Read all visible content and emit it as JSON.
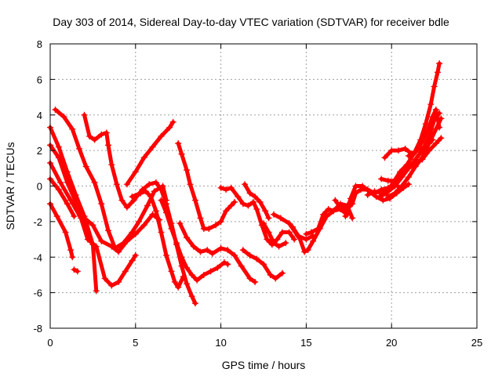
{
  "chart_data": {
    "type": "scatter",
    "title": "Day 303 of 2014, Sidereal Day-to-day VTEC variation (SDTVAR) for receiver bdle",
    "xlabel": "GPS time / hours",
    "ylabel": "SDTVAR / TECUs",
    "xlim": [
      0,
      25
    ],
    "ylim": [
      -8,
      8
    ],
    "xticks": [
      "0",
      "5",
      "10",
      "15",
      "20",
      "25"
    ],
    "yticks": [
      "8",
      "6",
      "4",
      "2",
      "0",
      "-2",
      "-4",
      "-6",
      "-8"
    ],
    "grid": true,
    "marker": "plus",
    "color": "#ff0000",
    "series": [
      {
        "points": [
          [
            0.0,
            3.3
          ],
          [
            0.5,
            2.2
          ],
          [
            1.0,
            0.8
          ],
          [
            1.5,
            -0.5
          ],
          [
            2.0,
            -1.7
          ],
          [
            2.5,
            -3.3
          ],
          [
            2.7,
            -5.9
          ]
        ]
      },
      {
        "points": [
          [
            0.0,
            1.3
          ],
          [
            0.6,
            0.2
          ],
          [
            1.2,
            -0.8
          ],
          [
            1.8,
            -1.8
          ],
          [
            2.2,
            -3.0
          ],
          [
            2.7,
            -3.4
          ],
          [
            3.2,
            -5.2
          ],
          [
            3.6,
            -5.6
          ],
          [
            4.0,
            -5.4
          ],
          [
            4.4,
            -4.8
          ],
          [
            4.8,
            -4.2
          ],
          [
            5.0,
            -3.9
          ]
        ]
      },
      {
        "points": [
          [
            0.0,
            -1.0
          ],
          [
            0.4,
            -1.7
          ],
          [
            0.9,
            -2.6
          ],
          [
            1.2,
            -3.6
          ],
          [
            1.3,
            -4.0
          ]
        ]
      },
      {
        "points": [
          [
            1.4,
            -4.7
          ],
          [
            1.6,
            -4.8
          ]
        ]
      },
      {
        "points": [
          [
            0.3,
            4.3
          ],
          [
            0.8,
            3.9
          ],
          [
            1.3,
            3.2
          ],
          [
            1.7,
            2.1
          ],
          [
            2.1,
            1.1
          ],
          [
            2.6,
            0.2
          ],
          [
            3.0,
            -1.0
          ],
          [
            3.4,
            -2.5
          ],
          [
            3.8,
            -3.5
          ],
          [
            4.3,
            -3.2
          ],
          [
            4.8,
            -2.6
          ],
          [
            5.2,
            -2.0
          ],
          [
            5.7,
            -1.1
          ],
          [
            6.1,
            -0.3
          ],
          [
            6.6,
            0.0
          ],
          [
            6.8,
            -0.8
          ]
        ]
      },
      {
        "points": [
          [
            0.0,
            2.3
          ],
          [
            0.5,
            1.6
          ],
          [
            1.0,
            0.2
          ],
          [
            1.5,
            -0.9
          ],
          [
            2.0,
            -1.8
          ],
          [
            2.5,
            -2.2
          ],
          [
            3.0,
            -3.1
          ],
          [
            3.6,
            -3.4
          ],
          [
            4.0,
            -3.7
          ],
          [
            4.5,
            -3.1
          ],
          [
            5.0,
            -2.7
          ],
          [
            5.5,
            -2.2
          ],
          [
            6.0,
            -1.6
          ],
          [
            6.4,
            -1.9
          ]
        ]
      },
      {
        "points": [
          [
            0.0,
            0.4
          ],
          [
            0.5,
            -0.2
          ],
          [
            1.0,
            -1.0
          ],
          [
            1.4,
            -1.7
          ]
        ]
      },
      {
        "points": [
          [
            2.0,
            4.0
          ],
          [
            2.3,
            2.8
          ],
          [
            2.6,
            2.6
          ],
          [
            3.0,
            2.9
          ],
          [
            3.3,
            3.0
          ],
          [
            3.4,
            2.3
          ],
          [
            3.6,
            1.2
          ],
          [
            3.9,
            0.1
          ],
          [
            4.2,
            -0.8
          ],
          [
            4.5,
            -1.2
          ],
          [
            4.9,
            -0.8
          ],
          [
            5.4,
            -0.2
          ],
          [
            5.8,
            0.1
          ],
          [
            6.2,
            0.2
          ],
          [
            6.5,
            -0.2
          ],
          [
            6.8,
            -1.0
          ],
          [
            7.1,
            -2.1
          ],
          [
            7.4,
            -3.3
          ],
          [
            7.7,
            -4.5
          ],
          [
            8.0,
            -5.5
          ],
          [
            8.3,
            -6.2
          ],
          [
            8.5,
            -6.6
          ]
        ]
      },
      {
        "points": [
          [
            4.5,
            0.1
          ],
          [
            5.0,
            0.8
          ],
          [
            5.5,
            1.6
          ],
          [
            6.0,
            2.2
          ],
          [
            6.5,
            2.8
          ],
          [
            7.0,
            3.3
          ],
          [
            7.2,
            3.6
          ]
        ]
      },
      {
        "points": [
          [
            4.8,
            -0.6
          ],
          [
            5.3,
            -0.4
          ],
          [
            5.6,
            -0.3
          ],
          [
            5.9,
            -0.6
          ],
          [
            6.2,
            -1.4
          ],
          [
            6.5,
            -2.6
          ],
          [
            6.8,
            -3.9
          ],
          [
            7.1,
            -4.8
          ],
          [
            7.3,
            -5.4
          ],
          [
            7.5,
            -5.7
          ],
          [
            7.8,
            -5.1
          ]
        ]
      },
      {
        "points": [
          [
            6.5,
            -0.8
          ],
          [
            6.8,
            -1.5
          ],
          [
            7.1,
            -2.4
          ],
          [
            7.4,
            -3.2
          ],
          [
            7.7,
            -4.0
          ],
          [
            8.0,
            -4.6
          ],
          [
            8.3,
            -5.0
          ],
          [
            8.6,
            -5.3
          ],
          [
            9.0,
            -5.0
          ],
          [
            9.4,
            -4.8
          ],
          [
            9.8,
            -4.6
          ],
          [
            10.2,
            -4.3
          ],
          [
            10.4,
            -4.4
          ]
        ]
      },
      {
        "points": [
          [
            7.5,
            2.4
          ],
          [
            7.7,
            1.8
          ],
          [
            8.0,
            0.9
          ],
          [
            8.2,
            0.1
          ],
          [
            8.5,
            -0.8
          ],
          [
            8.8,
            -1.8
          ],
          [
            9.0,
            -2.4
          ],
          [
            9.3,
            -2.4
          ],
          [
            9.7,
            -2.2
          ],
          [
            10.0,
            -2.0
          ],
          [
            10.3,
            -1.4
          ],
          [
            10.6,
            -1.1
          ],
          [
            10.8,
            -0.9
          ]
        ]
      },
      {
        "points": [
          [
            7.6,
            -2.1
          ],
          [
            8.0,
            -2.9
          ],
          [
            8.4,
            -3.4
          ],
          [
            8.8,
            -3.7
          ],
          [
            9.2,
            -3.6
          ],
          [
            9.5,
            -3.8
          ],
          [
            10.0,
            -3.5
          ],
          [
            10.4,
            -3.6
          ],
          [
            10.8,
            -3.9
          ],
          [
            11.2,
            -4.5
          ],
          [
            11.7,
            -5.2
          ],
          [
            12.0,
            -5.4
          ]
        ]
      },
      {
        "points": [
          [
            10.0,
            -0.1
          ],
          [
            10.3,
            -0.2
          ],
          [
            10.6,
            -0.1
          ],
          [
            11.0,
            -0.6
          ],
          [
            11.3,
            -1.0
          ],
          [
            11.6,
            -1.1
          ],
          [
            11.9,
            -0.9
          ],
          [
            12.1,
            -1.3
          ],
          [
            12.4,
            -2.2
          ],
          [
            12.7,
            -3.0
          ],
          [
            13.0,
            -3.3
          ],
          [
            13.3,
            -3.0
          ],
          [
            13.6,
            -2.6
          ],
          [
            14.0,
            -2.6
          ],
          [
            14.3,
            -3.0
          ]
        ]
      },
      {
        "points": [
          [
            11.3,
            -3.6
          ],
          [
            11.7,
            -3.9
          ],
          [
            12.1,
            -4.1
          ],
          [
            12.5,
            -4.4
          ],
          [
            12.9,
            -5.0
          ],
          [
            13.2,
            -5.2
          ],
          [
            13.6,
            -4.9
          ]
        ]
      },
      {
        "points": [
          [
            11.4,
            0.1
          ],
          [
            11.7,
            -0.4
          ],
          [
            12.0,
            -0.6
          ],
          [
            12.3,
            -0.9
          ],
          [
            12.6,
            -1.4
          ],
          [
            12.8,
            -1.8
          ]
        ]
      },
      {
        "points": [
          [
            12.5,
            -2.1
          ],
          [
            12.8,
            -2.6
          ],
          [
            13.1,
            -3.2
          ],
          [
            13.4,
            -3.4
          ],
          [
            13.8,
            -3.2
          ]
        ]
      },
      {
        "points": [
          [
            13.1,
            -1.6
          ],
          [
            13.5,
            -1.8
          ],
          [
            14.0,
            -2.1
          ],
          [
            14.5,
            -2.8
          ],
          [
            15.0,
            -3.0
          ],
          [
            15.4,
            -2.8
          ]
        ]
      },
      {
        "points": [
          [
            14.2,
            -2.3
          ],
          [
            14.6,
            -2.9
          ],
          [
            14.9,
            -3.7
          ],
          [
            15.1,
            -3.6
          ],
          [
            15.4,
            -3.1
          ],
          [
            15.8,
            -2.4
          ],
          [
            16.2,
            -1.7
          ],
          [
            16.6,
            -1.4
          ],
          [
            17.0,
            -1.3
          ],
          [
            17.4,
            -1.6
          ]
        ]
      },
      {
        "points": [
          [
            15.0,
            -2.7
          ],
          [
            15.3,
            -2.6
          ],
          [
            15.7,
            -2.4
          ],
          [
            16.0,
            -1.6
          ],
          [
            16.3,
            -1.3
          ],
          [
            16.6,
            -1.4
          ],
          [
            17.0,
            -1.0
          ],
          [
            17.4,
            -1.1
          ],
          [
            17.7,
            -1.8
          ]
        ]
      },
      {
        "points": [
          [
            16.7,
            -0.8
          ],
          [
            17.0,
            -1.2
          ],
          [
            17.4,
            -1.3
          ],
          [
            17.7,
            -1.0
          ],
          [
            17.9,
            -0.4
          ],
          [
            18.2,
            -0.2
          ],
          [
            18.6,
            -0.2
          ],
          [
            19.0,
            -0.4
          ],
          [
            19.4,
            -0.2
          ],
          [
            19.8,
            -0.1
          ],
          [
            20.2,
            0.1
          ],
          [
            20.5,
            -0.1
          ]
        ]
      },
      {
        "points": [
          [
            17.3,
            -1.7
          ],
          [
            17.6,
            -0.7
          ],
          [
            17.9,
            0.0
          ],
          [
            18.3,
            0.0
          ],
          [
            18.7,
            -0.3
          ],
          [
            19.1,
            -0.6
          ],
          [
            19.5,
            -0.8
          ],
          [
            19.9,
            -0.7
          ],
          [
            20.3,
            -0.4
          ],
          [
            20.7,
            -0.1
          ],
          [
            21.0,
            0.1
          ]
        ]
      },
      {
        "points": [
          [
            18.6,
            -0.5
          ],
          [
            19.0,
            -0.3
          ],
          [
            19.4,
            -0.4
          ],
          [
            19.8,
            -0.3
          ],
          [
            20.2,
            0.0
          ],
          [
            20.6,
            0.5
          ],
          [
            21.0,
            1.0
          ],
          [
            21.4,
            1.5
          ],
          [
            21.8,
            2.0
          ],
          [
            22.2,
            2.8
          ],
          [
            22.5,
            3.7
          ],
          [
            22.8,
            4.1
          ]
        ]
      },
      {
        "points": [
          [
            19.4,
            0.4
          ],
          [
            19.8,
            0.3
          ],
          [
            20.2,
            0.3
          ],
          [
            20.6,
            0.6
          ],
          [
            21.0,
            1.0
          ],
          [
            21.4,
            1.3
          ],
          [
            21.8,
            1.5
          ],
          [
            22.2,
            2.0
          ],
          [
            22.6,
            2.4
          ],
          [
            22.9,
            2.7
          ]
        ]
      },
      {
        "points": [
          [
            19.8,
            -0.6
          ],
          [
            20.2,
            -0.4
          ],
          [
            20.6,
            0.0
          ],
          [
            21.0,
            0.5
          ],
          [
            21.4,
            1.1
          ],
          [
            21.8,
            1.6
          ],
          [
            22.2,
            2.4
          ],
          [
            22.6,
            3.2
          ],
          [
            22.9,
            3.8
          ]
        ]
      },
      {
        "points": [
          [
            19.3,
            -0.6
          ],
          [
            19.7,
            -0.4
          ],
          [
            20.1,
            0.2
          ],
          [
            20.5,
            0.8
          ],
          [
            20.9,
            1.2
          ],
          [
            21.3,
            1.8
          ],
          [
            21.7,
            2.6
          ],
          [
            22.0,
            3.5
          ],
          [
            22.3,
            4.6
          ],
          [
            22.5,
            5.6
          ],
          [
            22.7,
            6.4
          ],
          [
            22.8,
            6.9
          ]
        ]
      },
      {
        "points": [
          [
            19.6,
            1.6
          ],
          [
            20.0,
            2.0
          ],
          [
            20.4,
            2.0
          ],
          [
            20.8,
            2.1
          ],
          [
            21.2,
            1.8
          ],
          [
            21.6,
            2.1
          ],
          [
            22.0,
            2.2
          ],
          [
            22.4,
            2.6
          ]
        ]
      },
      {
        "points": [
          [
            21.0,
            1.7
          ],
          [
            21.4,
            1.9
          ],
          [
            21.8,
            2.5
          ],
          [
            22.1,
            3.1
          ],
          [
            22.4,
            3.9
          ],
          [
            22.6,
            4.3
          ],
          [
            22.8,
            3.3
          ]
        ]
      }
    ]
  }
}
